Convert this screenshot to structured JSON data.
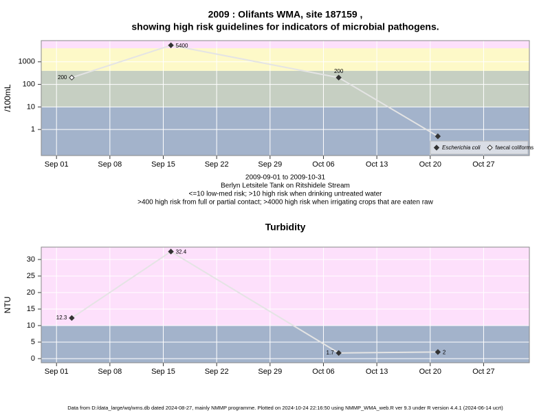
{
  "chart_data": [
    {
      "type": "scatter",
      "title": [
        "2009 : Olifants WMA, site 187159 ,",
        "showing high risk guidelines for indicators of microbial pathogens."
      ],
      "subtitle": [
        "2009-09-01 to 2009-10-31",
        "Berlyn Letsitele Tank on Ritshidele Stream",
        "<=10 low-med risk; >10 high risk when drinking untreated water",
        ">400 high risk from full or partial contact; >4000 high risk when irrigating crops that are eaten raw"
      ],
      "ylabel": "/100mL",
      "ylog": true,
      "xlim": [
        "2009-08-30",
        "2009-11-02"
      ],
      "xticks": [
        {
          "value": "2009-09-01",
          "label": "Sep 01"
        },
        {
          "value": "2009-09-08",
          "label": "Sep 08"
        },
        {
          "value": "2009-09-15",
          "label": "Sep 15"
        },
        {
          "value": "2009-09-22",
          "label": "Sep 22"
        },
        {
          "value": "2009-09-29",
          "label": "Sep 29"
        },
        {
          "value": "2009-10-06",
          "label": "Oct 06"
        },
        {
          "value": "2009-10-13",
          "label": "Oct 13"
        },
        {
          "value": "2009-10-20",
          "label": "Oct 20"
        },
        {
          "value": "2009-10-27",
          "label": "Oct 27"
        }
      ],
      "ylim": [
        0.07,
        8700
      ],
      "yticks": [
        1,
        10,
        100,
        1000
      ],
      "band_thresholds": [
        10,
        400,
        4000
      ],
      "band_colors": [
        "#a3b3cb",
        "#c6cfc2",
        "#fdf9c8",
        "#fde0fb"
      ],
      "grid": true,
      "line_color": "#e4e4e4",
      "legend": "bottom-right",
      "series": [
        {
          "name": "Escherichia coli",
          "marker": "filled",
          "color": "#333333",
          "x": [
            "2009-09-16",
            "2009-10-08",
            "2009-10-21"
          ],
          "values": [
            5400,
            200,
            0.5
          ],
          "value_labels": [
            "5400",
            "200",
            null
          ]
        },
        {
          "name": "faecal coliforms",
          "marker": "open",
          "color": "#333333",
          "x": [
            "2009-09-03"
          ],
          "values": [
            200
          ],
          "value_labels": [
            "200"
          ]
        }
      ]
    },
    {
      "type": "scatter",
      "title": [
        "Turbidity"
      ],
      "ylabel": "NTU",
      "ylog": false,
      "xlim": [
        "2009-08-30",
        "2009-11-02"
      ],
      "xticks": [
        {
          "value": "2009-09-01",
          "label": "Sep 01"
        },
        {
          "value": "2009-09-08",
          "label": "Sep 08"
        },
        {
          "value": "2009-09-15",
          "label": "Sep 15"
        },
        {
          "value": "2009-09-22",
          "label": "Sep 22"
        },
        {
          "value": "2009-09-29",
          "label": "Sep 29"
        },
        {
          "value": "2009-10-06",
          "label": "Oct 06"
        },
        {
          "value": "2009-10-13",
          "label": "Oct 13"
        },
        {
          "value": "2009-10-20",
          "label": "Oct 20"
        },
        {
          "value": "2009-10-27",
          "label": "Oct 27"
        }
      ],
      "ylim": [
        -1.25,
        33.75
      ],
      "yticks": [
        0,
        5,
        10,
        15,
        20,
        25,
        30
      ],
      "band_thresholds": [
        10
      ],
      "band_colors": [
        "#a3b3cb",
        "#fde0fb"
      ],
      "grid": true,
      "line_color": "#e4e4e4",
      "series": [
        {
          "name": "Turbidity",
          "marker": "filled",
          "color": "#333333",
          "x": [
            "2009-09-03",
            "2009-09-16",
            "2009-10-08",
            "2009-10-21"
          ],
          "values": [
            12.3,
            32.4,
            1.7,
            2
          ],
          "value_labels": [
            "12.3",
            "32.4",
            "1.7",
            "2"
          ]
        }
      ]
    }
  ],
  "footer": "Data from D:/data_large/wq/wms.db dated 2024-08-27, mainly NMMP programme. Plotted on 2024-10-24 22:16:50 using NMMP_WMA_web.R ver 9.3 under R version 4.4.1 (2024-06-14 ucrt)"
}
